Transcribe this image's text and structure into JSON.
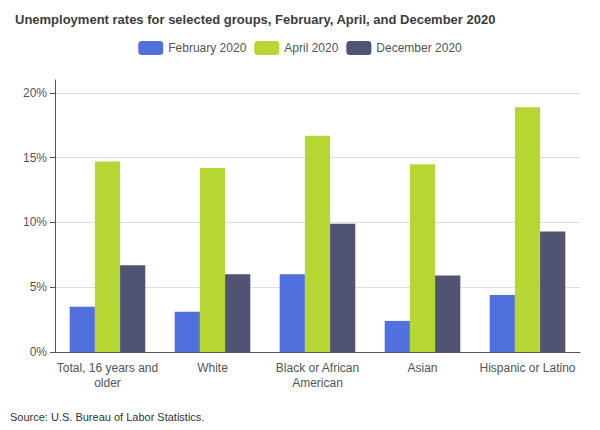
{
  "chart_data": {
    "type": "bar",
    "title": "Unemployment rates for selected groups, February, April, and December 2020",
    "categories": [
      "Total, 16 years and\nolder",
      "White",
      "Black or African\nAmerican",
      "Asian",
      "Hispanic or Latino"
    ],
    "series": [
      {
        "name": "February 2020",
        "values": [
          3.5,
          3.1,
          6.0,
          2.4,
          4.4
        ]
      },
      {
        "name": "April 2020",
        "values": [
          14.7,
          14.2,
          16.7,
          14.5,
          18.9
        ]
      },
      {
        "name": "December 2020",
        "values": [
          6.7,
          6.0,
          9.9,
          5.9,
          9.3
        ]
      }
    ],
    "ylim": [
      0,
      21
    ],
    "yticks": [
      {
        "value": 0,
        "label": "0%"
      },
      {
        "value": 5,
        "label": "5%"
      },
      {
        "value": 10,
        "label": "10%"
      },
      {
        "value": 15,
        "label": "15%"
      },
      {
        "value": 20,
        "label": "20%"
      }
    ],
    "grid": true,
    "legend": "top",
    "annotations": [
      "Source: U.S. Bureau of Labor Statistics."
    ]
  }
}
